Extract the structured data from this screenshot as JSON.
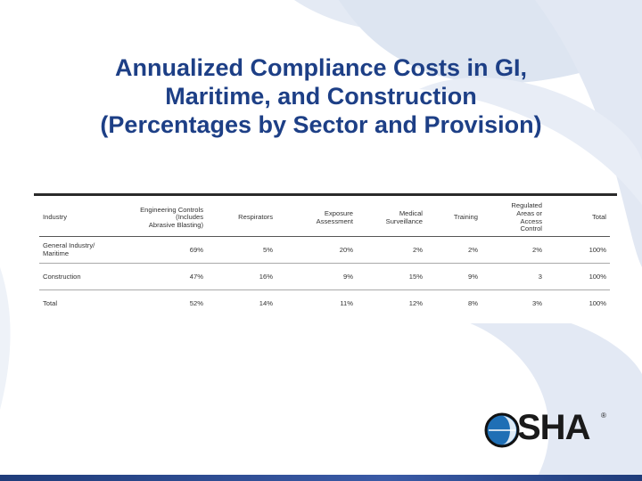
{
  "slide": {
    "title_lines": [
      "Annualized Compliance Costs in GI,",
      "Maritime, and Construction",
      "(Percentages by Sector and Provision)"
    ],
    "colors": {
      "title": "#1d3f86",
      "background_swirl": "#dfe6f2",
      "bottom_band": "#2a4a90",
      "logo_blue": "#1f6fb5"
    }
  },
  "table": {
    "headers": [
      [
        "Industry"
      ],
      [
        "Engineering Controls",
        "(Includes",
        "Abrasive Blasting)"
      ],
      [
        "Respirators"
      ],
      [
        "Exposure",
        "Assessment"
      ],
      [
        "Medical",
        "Surveillance"
      ],
      [
        "Training"
      ],
      [
        "Regulated",
        "Areas or",
        "Access",
        "Control"
      ],
      [
        "Total"
      ]
    ],
    "rows": [
      {
        "industry": [
          "General Industry/",
          "Maritime"
        ],
        "values": [
          "69%",
          "5%",
          "20%",
          "2%",
          "2%",
          "2%",
          "100%"
        ]
      },
      {
        "industry": [
          "Construction"
        ],
        "values": [
          "47%",
          "16%",
          "9%",
          "15%",
          "9%",
          "3",
          "100%"
        ]
      },
      {
        "industry": [
          "Total"
        ],
        "values": [
          "52%",
          "14%",
          "11%",
          "12%",
          "8%",
          "3%",
          "100%"
        ]
      }
    ]
  },
  "logo": {
    "text": "SHA",
    "registered": "®",
    "icon": "osha-globe-icon"
  }
}
